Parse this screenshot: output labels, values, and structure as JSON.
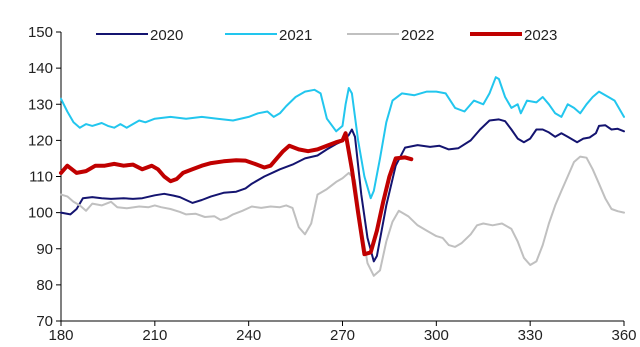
{
  "chart_data": {
    "type": "line",
    "title": "",
    "xlabel": "",
    "ylabel": "",
    "xlim": [
      180,
      360
    ],
    "ylim": [
      70,
      150
    ],
    "xticks": [
      180,
      210,
      240,
      270,
      300,
      330,
      360
    ],
    "yticks": [
      70,
      80,
      90,
      100,
      110,
      120,
      130,
      140,
      150
    ],
    "grid": false,
    "legend_position": "top",
    "series": [
      {
        "name": "2020",
        "color": "#141470",
        "width": 2,
        "points": [
          [
            180,
            100
          ],
          [
            183,
            99.5
          ],
          [
            185,
            101
          ],
          [
            187,
            104
          ],
          [
            190,
            104.3
          ],
          [
            193,
            104
          ],
          [
            196,
            103.8
          ],
          [
            200,
            104
          ],
          [
            203,
            103.8
          ],
          [
            206,
            104
          ],
          [
            210,
            104.8
          ],
          [
            213,
            105.2
          ],
          [
            216,
            104.7
          ],
          [
            218,
            104.3
          ],
          [
            220,
            103.5
          ],
          [
            222,
            102.7
          ],
          [
            225,
            103.5
          ],
          [
            228,
            104.5
          ],
          [
            232,
            105.5
          ],
          [
            236,
            105.8
          ],
          [
            239,
            106.7
          ],
          [
            241,
            108
          ],
          [
            245,
            110
          ],
          [
            248,
            111.2
          ],
          [
            250,
            112
          ],
          [
            254,
            113.3
          ],
          [
            258,
            115
          ],
          [
            262,
            115.8
          ],
          [
            265,
            117.5
          ],
          [
            268,
            119
          ],
          [
            270,
            119.8
          ],
          [
            272,
            121.5
          ],
          [
            273,
            123
          ],
          [
            274,
            121
          ],
          [
            276,
            105
          ],
          [
            278,
            93
          ],
          [
            280,
            86.5
          ],
          [
            281,
            88
          ],
          [
            284,
            102
          ],
          [
            287,
            113
          ],
          [
            290,
            118
          ],
          [
            294,
            118.7
          ],
          [
            298,
            118.2
          ],
          [
            301,
            118.5
          ],
          [
            304,
            117.5
          ],
          [
            307,
            117.8
          ],
          [
            311,
            120
          ],
          [
            314,
            123
          ],
          [
            317,
            125.5
          ],
          [
            320,
            125.8
          ],
          [
            322,
            125.3
          ],
          [
            324,
            123
          ],
          [
            326,
            120.5
          ],
          [
            328,
            119.5
          ],
          [
            330,
            120.5
          ],
          [
            332,
            123
          ],
          [
            334,
            123
          ],
          [
            336,
            122.2
          ],
          [
            338,
            121
          ],
          [
            340,
            122
          ],
          [
            342,
            121
          ],
          [
            345,
            119.5
          ],
          [
            347,
            120.5
          ],
          [
            349,
            120.8
          ],
          [
            351,
            122
          ],
          [
            352,
            124
          ],
          [
            354,
            124.2
          ],
          [
            356,
            123
          ],
          [
            358,
            123.2
          ],
          [
            360,
            122.5
          ]
        ]
      },
      {
        "name": "2021",
        "color": "#22C6EE",
        "width": 2,
        "points": [
          [
            180,
            131.5
          ],
          [
            182,
            128
          ],
          [
            184,
            125
          ],
          [
            186,
            123.5
          ],
          [
            188,
            124.5
          ],
          [
            190,
            124
          ],
          [
            193,
            124.8
          ],
          [
            195,
            124
          ],
          [
            197,
            123.5
          ],
          [
            199,
            124.5
          ],
          [
            201,
            123.5
          ],
          [
            203,
            124.5
          ],
          [
            205,
            125.5
          ],
          [
            207,
            125
          ],
          [
            210,
            126
          ],
          [
            215,
            126.5
          ],
          [
            220,
            126
          ],
          [
            225,
            126.5
          ],
          [
            230,
            126
          ],
          [
            235,
            125.5
          ],
          [
            240,
            126.5
          ],
          [
            243,
            127.5
          ],
          [
            246,
            128
          ],
          [
            248,
            126.5
          ],
          [
            250,
            127.5
          ],
          [
            252,
            129.5
          ],
          [
            255,
            132
          ],
          [
            258,
            133.5
          ],
          [
            261,
            134
          ],
          [
            263,
            133
          ],
          [
            265,
            126
          ],
          [
            268,
            122.5
          ],
          [
            270,
            124
          ],
          [
            271,
            130
          ],
          [
            272,
            134.5
          ],
          [
            273,
            133
          ],
          [
            275,
            120
          ],
          [
            277,
            110
          ],
          [
            279,
            104
          ],
          [
            280,
            106
          ],
          [
            282,
            115
          ],
          [
            284,
            125
          ],
          [
            286,
            131
          ],
          [
            289,
            133
          ],
          [
            293,
            132.5
          ],
          [
            297,
            133.5
          ],
          [
            300,
            133.5
          ],
          [
            303,
            133
          ],
          [
            306,
            129
          ],
          [
            309,
            128
          ],
          [
            312,
            131
          ],
          [
            315,
            130
          ],
          [
            317,
            133
          ],
          [
            319,
            137.5
          ],
          [
            320,
            137
          ],
          [
            322,
            132
          ],
          [
            324,
            129
          ],
          [
            326,
            130
          ],
          [
            327,
            127.5
          ],
          [
            329,
            131
          ],
          [
            332,
            130.5
          ],
          [
            334,
            132
          ],
          [
            336,
            130
          ],
          [
            338,
            127.5
          ],
          [
            340,
            126.5
          ],
          [
            342,
            130
          ],
          [
            344,
            129
          ],
          [
            346,
            127.5
          ],
          [
            348,
            130
          ],
          [
            350,
            132
          ],
          [
            352,
            133.5
          ],
          [
            355,
            132
          ],
          [
            357,
            131
          ],
          [
            360,
            126.5
          ]
        ]
      },
      {
        "name": "2022",
        "color": "#C0C0C0",
        "width": 2,
        "points": [
          [
            180,
            105
          ],
          [
            182,
            104.5
          ],
          [
            184,
            103
          ],
          [
            186,
            102
          ],
          [
            188,
            100.5
          ],
          [
            190,
            102.5
          ],
          [
            193,
            102
          ],
          [
            196,
            103
          ],
          [
            198,
            101.5
          ],
          [
            201,
            101.2
          ],
          [
            205,
            101.7
          ],
          [
            208,
            101.5
          ],
          [
            210,
            102
          ],
          [
            212,
            101.5
          ],
          [
            215,
            101
          ],
          [
            218,
            100.2
          ],
          [
            220,
            99.5
          ],
          [
            223,
            99.7
          ],
          [
            226,
            98.8
          ],
          [
            229,
            99
          ],
          [
            231,
            98
          ],
          [
            233,
            98.5
          ],
          [
            235,
            99.5
          ],
          [
            238,
            100.5
          ],
          [
            241,
            101.7
          ],
          [
            244,
            101.3
          ],
          [
            247,
            101.7
          ],
          [
            250,
            101.5
          ],
          [
            252,
            102
          ],
          [
            254,
            101.3
          ],
          [
            256,
            96
          ],
          [
            258,
            94
          ],
          [
            260,
            97
          ],
          [
            262,
            105
          ],
          [
            265,
            106.5
          ],
          [
            268,
            108.5
          ],
          [
            270,
            109.5
          ],
          [
            272,
            111
          ],
          [
            274,
            109
          ],
          [
            276,
            96
          ],
          [
            278,
            86
          ],
          [
            280,
            82.5
          ],
          [
            282,
            84
          ],
          [
            284,
            92
          ],
          [
            286,
            97.5
          ],
          [
            288,
            100.5
          ],
          [
            291,
            99
          ],
          [
            294,
            96.5
          ],
          [
            297,
            95
          ],
          [
            300,
            93.5
          ],
          [
            302,
            93
          ],
          [
            304,
            91
          ],
          [
            306,
            90.5
          ],
          [
            308,
            91.5
          ],
          [
            311,
            94
          ],
          [
            313,
            96.5
          ],
          [
            315,
            97
          ],
          [
            318,
            96.5
          ],
          [
            321,
            97
          ],
          [
            324,
            95.5
          ],
          [
            326,
            92
          ],
          [
            328,
            87.5
          ],
          [
            330,
            85.5
          ],
          [
            332,
            86.5
          ],
          [
            334,
            91
          ],
          [
            336,
            97
          ],
          [
            338,
            102
          ],
          [
            340,
            106
          ],
          [
            342,
            110
          ],
          [
            344,
            114
          ],
          [
            346,
            115.5
          ],
          [
            348,
            115.2
          ],
          [
            350,
            112
          ],
          [
            352,
            108
          ],
          [
            354,
            104
          ],
          [
            356,
            101
          ],
          [
            358,
            100.4
          ],
          [
            360,
            100
          ]
        ]
      },
      {
        "name": "2023",
        "color": "#C00000",
        "width": 4,
        "points": [
          [
            180,
            111
          ],
          [
            182,
            113
          ],
          [
            185,
            111
          ],
          [
            188,
            111.5
          ],
          [
            191,
            113
          ],
          [
            194,
            113
          ],
          [
            197,
            113.5
          ],
          [
            200,
            113
          ],
          [
            203,
            113.3
          ],
          [
            206,
            112
          ],
          [
            209,
            113
          ],
          [
            211,
            112
          ],
          [
            213,
            110
          ],
          [
            215,
            108.7
          ],
          [
            217,
            109.3
          ],
          [
            219,
            111
          ],
          [
            222,
            112
          ],
          [
            225,
            113
          ],
          [
            228,
            113.7
          ],
          [
            232,
            114.2
          ],
          [
            236,
            114.5
          ],
          [
            239,
            114.4
          ],
          [
            242,
            113.5
          ],
          [
            245,
            112.5
          ],
          [
            247,
            113
          ],
          [
            249,
            115
          ],
          [
            251,
            117
          ],
          [
            253,
            118.5
          ],
          [
            256,
            117.5
          ],
          [
            259,
            117
          ],
          [
            262,
            117.5
          ],
          [
            265,
            118.5
          ],
          [
            268,
            119.5
          ],
          [
            270,
            120
          ],
          [
            271,
            122
          ],
          [
            273,
            112
          ],
          [
            275,
            100
          ],
          [
            277,
            88.5
          ],
          [
            279,
            89
          ],
          [
            281,
            95
          ],
          [
            283,
            103
          ],
          [
            285,
            110
          ],
          [
            287,
            115
          ],
          [
            290,
            115.3
          ],
          [
            292,
            114.8
          ]
        ]
      }
    ]
  }
}
